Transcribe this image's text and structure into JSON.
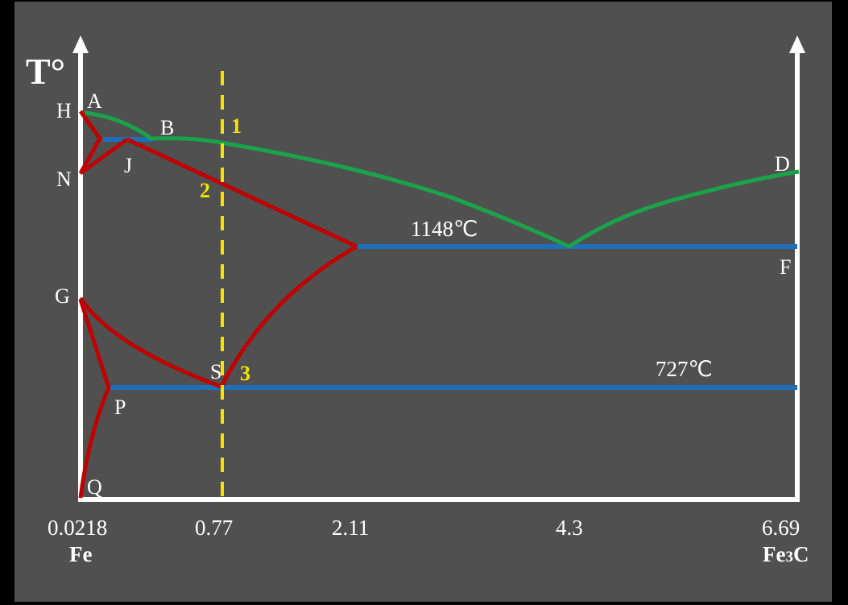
{
  "diagram": {
    "axis_title": "T°",
    "x_ticks": [
      "0.0218",
      "0.77",
      "2.11",
      "4.3",
      "6.69"
    ],
    "left_component": "Fe",
    "right_component": "Fe3C",
    "right_component_base": "Fe",
    "right_component_sub": "3",
    "right_component_tail": "C",
    "points": {
      "H": "H",
      "A": "A",
      "B": "B",
      "N": "N",
      "J": "J",
      "D": "D",
      "F": "F",
      "G": "G",
      "S": "S",
      "P": "P",
      "Q": "Q"
    },
    "temperature_labels": {
      "eutectic": "1148℃",
      "eutectoid": "727℃"
    },
    "alloy_markers": [
      "1",
      "2",
      "3"
    ],
    "colors": {
      "background": "#505050",
      "axis": "#ffffff",
      "liquidus": "#1aa34a",
      "phase_lines": "#c00000",
      "isotherms": "#1f6fb8",
      "alloy_line": "#f5e400"
    }
  }
}
